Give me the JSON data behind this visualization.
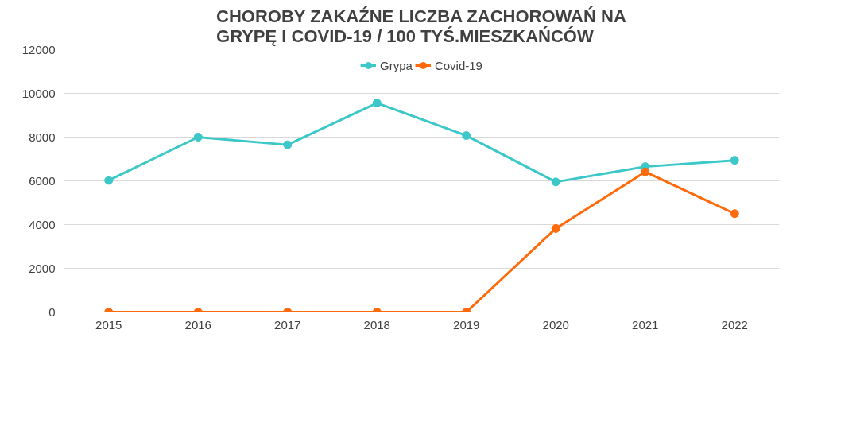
{
  "chart_data": {
    "type": "line",
    "title": "CHOROBY ZAKAŹNE LICZBA ZACHOROWAŃ NA GRYPĘ I COVID-19 / 100 TYŚ.MIESZKAŃCÓW",
    "categories": [
      "2015",
      "2016",
      "2017",
      "2018",
      "2019",
      "2020",
      "2021",
      "2022"
    ],
    "series": [
      {
        "name": "Grypa",
        "color": "#3cc8c8",
        "values": [
          6020,
          8000,
          7650,
          9560,
          8070,
          5950,
          6650,
          6940
        ]
      },
      {
        "name": "Covid-19",
        "color": "#ff6a0a",
        "values": [
          0,
          0,
          0,
          0,
          0,
          3820,
          6410,
          4500
        ]
      }
    ],
    "ylim": [
      0,
      12000
    ],
    "yticks": [
      0,
      2000,
      4000,
      6000,
      8000,
      10000,
      12000
    ],
    "grid": "y",
    "legend": "top",
    "marker": "circle",
    "line_style": "solid"
  }
}
